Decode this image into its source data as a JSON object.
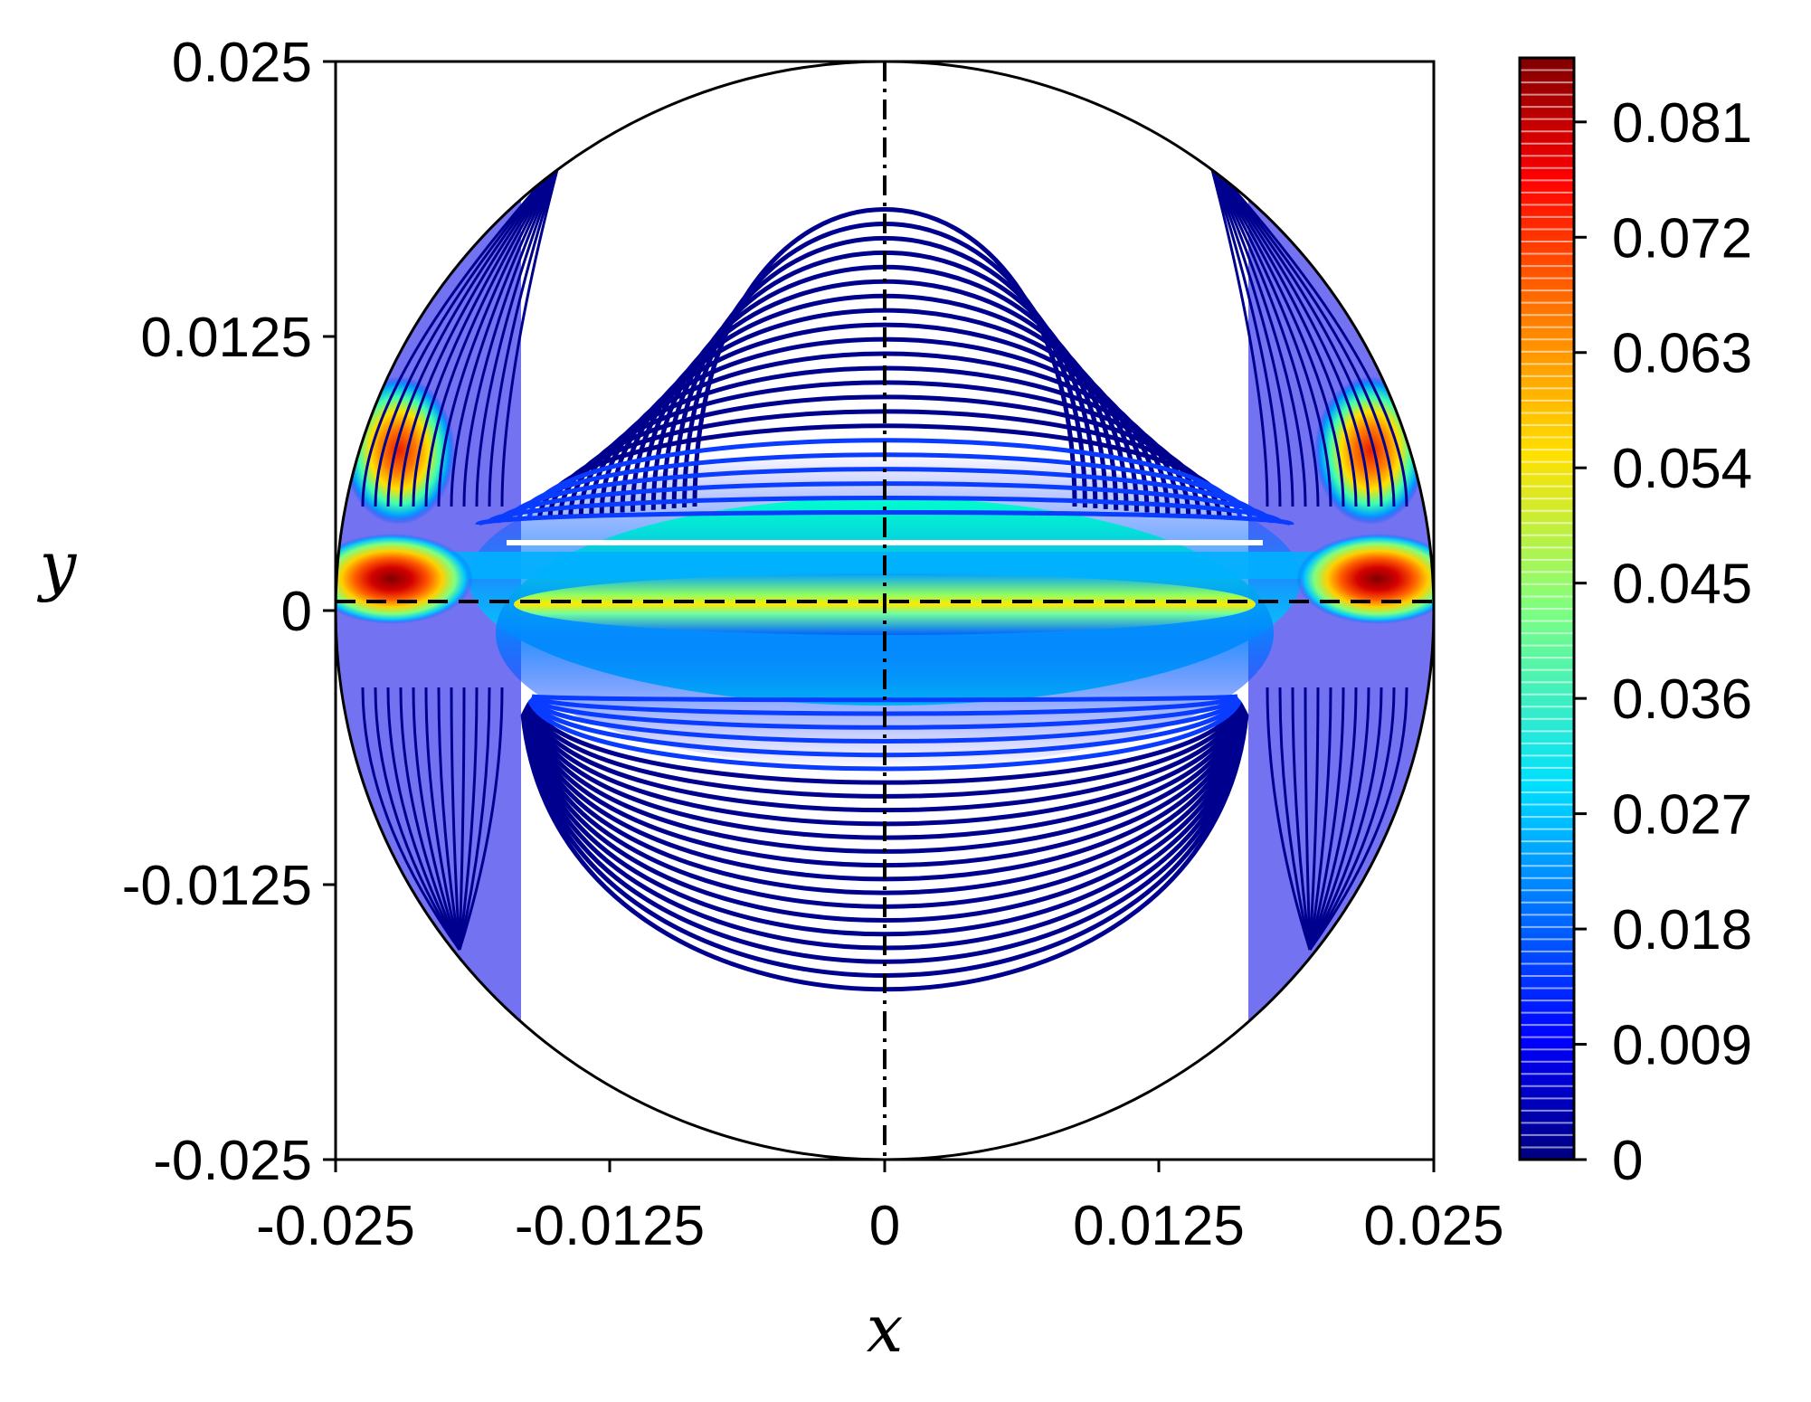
{
  "chart_data": {
    "type": "contour",
    "xlabel": "x",
    "ylabel": "y",
    "xlim": [
      -0.025,
      0.025
    ],
    "ylim": [
      -0.025,
      0.025
    ],
    "x_ticks": [
      "-0.025",
      "-0.0125",
      "0",
      "0.0125",
      "0.025"
    ],
    "x_tick_values": [
      -0.025,
      -0.0125,
      0,
      0.0125,
      0.025
    ],
    "y_ticks": [
      "0.025",
      "0.0125",
      "0",
      "-0.0125",
      "-0.025"
    ],
    "y_tick_values": [
      0.025,
      0.0125,
      0,
      -0.0125,
      -0.025
    ],
    "domain": "circle",
    "domain_radius": 0.025,
    "colormap": "jet",
    "colorbar": {
      "min": 0,
      "max": 0.086,
      "ticks": [
        "0.081",
        "0.072",
        "0.063",
        "0.054",
        "0.045",
        "0.036",
        "0.027",
        "0.018",
        "0.009",
        "0"
      ],
      "tick_values": [
        0.081,
        0.072,
        0.063,
        0.054,
        0.045,
        0.036,
        0.027,
        0.018,
        0.009,
        0
      ]
    },
    "reference_lines": [
      {
        "orientation": "horizontal",
        "y": 0.0004,
        "style": "dashed"
      },
      {
        "orientation": "vertical",
        "x": 0,
        "style": "dash-dot"
      }
    ],
    "peaks": [
      {
        "x": -0.0218,
        "y": 0.0012,
        "value": 0.086
      },
      {
        "x": 0.0218,
        "y": 0.0012,
        "value": 0.086
      },
      {
        "x": -0.0218,
        "y": 0.0072,
        "value": 0.07
      },
      {
        "x": 0.0218,
        "y": 0.0072,
        "value": 0.07
      },
      {
        "x": 0,
        "y": 0.0008,
        "value": 0.056
      }
    ],
    "contour_lines": {
      "count_approx": 100,
      "level_min": 0,
      "level_max": 0.086
    },
    "grid": false,
    "legend": "colorbar-right",
    "colors": {
      "low": "#00007f",
      "high": "#7f0000",
      "axes": "#000000"
    }
  }
}
